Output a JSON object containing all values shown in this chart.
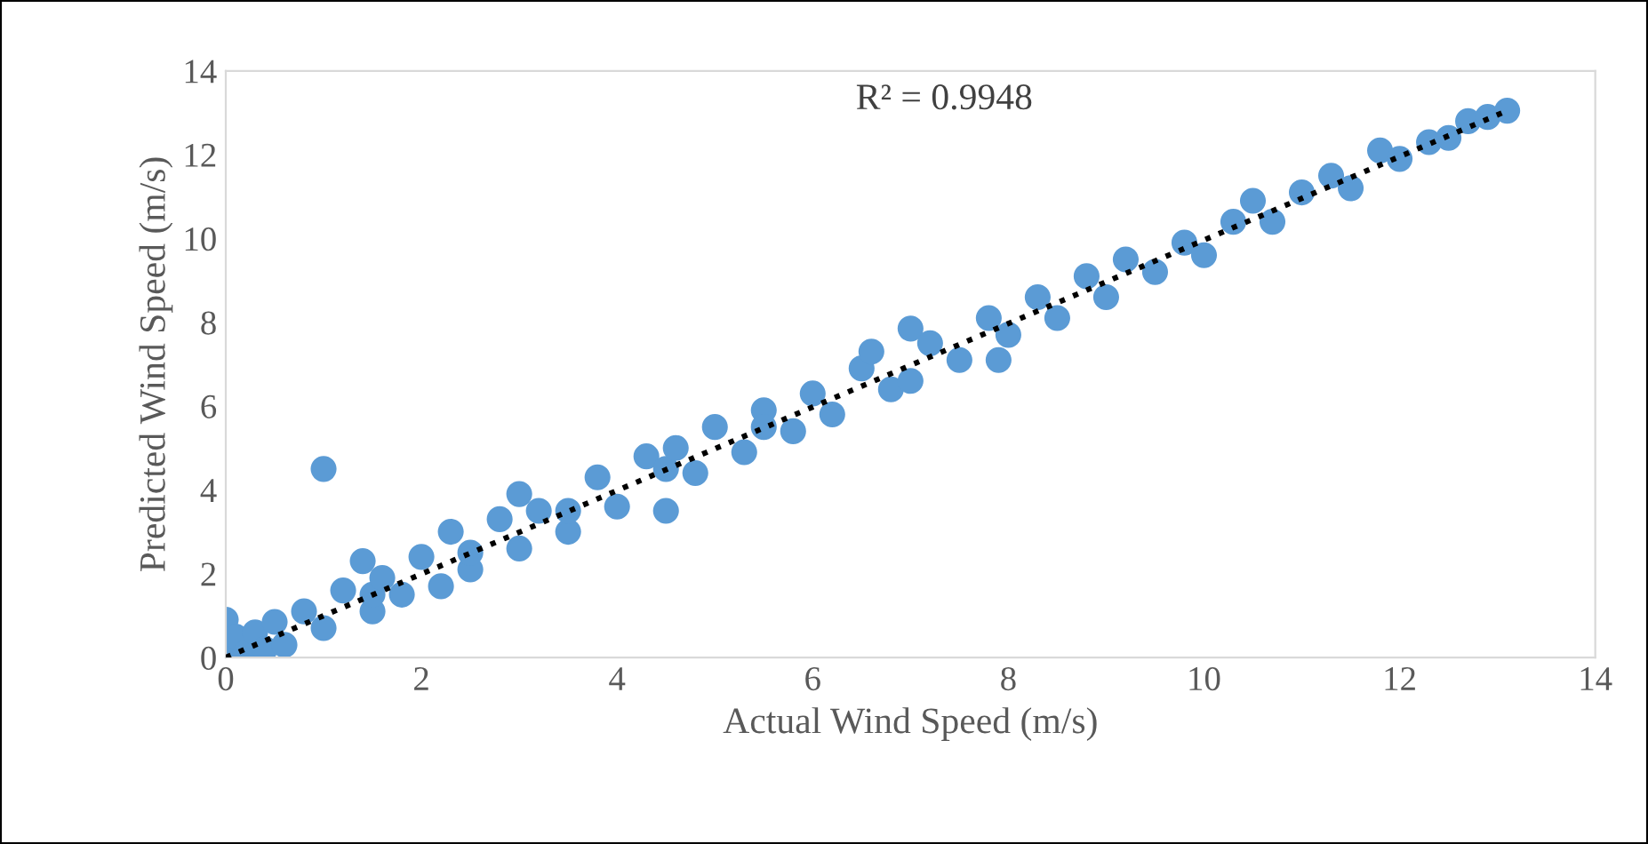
{
  "chart_data": {
    "type": "scatter",
    "xlabel": "Actual Wind Speed (m/s)",
    "ylabel": "Predicted Wind Speed (m/s)",
    "annotations": [
      "R² = 0.9948"
    ],
    "xlim": [
      0,
      14
    ],
    "ylim": [
      0,
      14
    ],
    "xticks": [
      0,
      2,
      4,
      6,
      8,
      10,
      12,
      14
    ],
    "yticks": [
      0,
      2,
      4,
      6,
      8,
      10,
      12,
      14
    ],
    "grid": false,
    "marker": "circle",
    "series": [
      {
        "color": "#5b9bd5",
        "x": [
          0,
          0.05,
          0.1,
          0.2,
          0.3,
          0.4,
          0.5,
          0.6,
          0.8,
          1.0,
          1.0,
          1.2,
          1.4,
          1.5,
          1.5,
          1.6,
          1.8,
          2.0,
          2.2,
          2.3,
          2.5,
          2.5,
          2.8,
          3.0,
          3.0,
          3.2,
          3.5,
          3.5,
          3.8,
          4.0,
          4.3,
          4.5,
          4.5,
          4.6,
          4.8,
          5.0,
          5.3,
          5.5,
          5.5,
          5.8,
          6.0,
          6.2,
          6.5,
          6.6,
          6.8,
          7.0,
          7.0,
          7.2,
          7.5,
          7.8,
          7.9,
          8.0,
          8.3,
          8.5,
          8.8,
          9.0,
          9.2,
          9.5,
          9.8,
          10.0,
          10.3,
          10.5,
          10.7,
          11.0,
          11.3,
          11.5,
          11.8,
          12.0,
          12.3,
          12.5,
          12.7,
          12.9,
          13.1
        ],
        "values": [
          0.9,
          0.25,
          0.5,
          0.1,
          0.6,
          0.2,
          0.85,
          0.3,
          1.1,
          4.5,
          0.7,
          1.6,
          2.3,
          1.1,
          1.5,
          1.9,
          1.5,
          2.4,
          1.7,
          3.0,
          2.1,
          2.5,
          3.3,
          3.9,
          2.6,
          3.5,
          3.0,
          3.5,
          4.3,
          3.6,
          4.8,
          3.5,
          4.5,
          5.0,
          4.4,
          5.5,
          4.9,
          5.9,
          5.5,
          5.4,
          6.3,
          5.8,
          6.9,
          7.3,
          6.4,
          7.85,
          6.6,
          7.5,
          7.1,
          8.1,
          7.1,
          7.7,
          8.6,
          8.1,
          9.1,
          8.6,
          9.5,
          9.2,
          9.9,
          9.6,
          10.4,
          10.9,
          10.4,
          11.1,
          11.5,
          11.2,
          12.1,
          11.9,
          12.3,
          12.4,
          12.8,
          12.9,
          13.05
        ]
      },
      {
        "type": "line",
        "color": "#000000",
        "line_style": "dotted",
        "marker": "none",
        "x": [
          0,
          13.1
        ],
        "values": [
          0,
          13.05
        ]
      }
    ]
  }
}
